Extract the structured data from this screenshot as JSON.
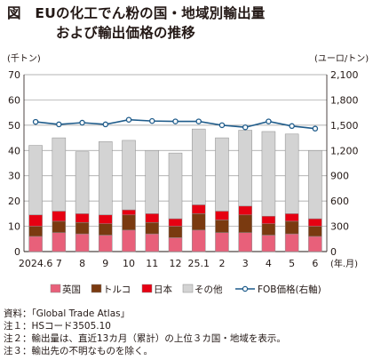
{
  "figure": {
    "title_line1": "図　EUの化工でん粉の国・地域別輸出量",
    "title_line2": "および輸出価格の推移"
  },
  "chart_data": {
    "type": "bar",
    "stacked": true,
    "categories": [
      "2024.6",
      "7",
      "8",
      "9",
      "10",
      "11",
      "12",
      "25.1",
      "2",
      "3",
      "4",
      "5",
      "6"
    ],
    "x_unit": "(年.月)",
    "y_left": {
      "unit": "(千トン)",
      "range": [
        0,
        70
      ],
      "ticks": [
        0,
        10,
        20,
        30,
        40,
        50,
        60,
        70
      ]
    },
    "y_right": {
      "unit": "(ユーロ/トン)",
      "range": [
        0,
        2100
      ],
      "ticks": [
        0,
        300,
        600,
        900,
        1200,
        1500,
        1800,
        2100
      ]
    },
    "grid": true,
    "series": [
      {
        "name": "英国",
        "color": "#e8607a",
        "values": [
          6,
          7.5,
          7,
          6.5,
          8.5,
          7,
          5.5,
          8.5,
          7.5,
          7.5,
          6.5,
          7,
          6
        ]
      },
      {
        "name": "トルコ",
        "color": "#7a3a10",
        "values": [
          4,
          4.5,
          4.5,
          4.5,
          6,
          4.5,
          4.5,
          6.5,
          5,
          7,
          4.5,
          5,
          4
        ]
      },
      {
        "name": "日本",
        "color": "#e60012",
        "values": [
          4.5,
          4,
          3.5,
          3.5,
          2,
          3.5,
          3,
          3.5,
          3.5,
          3.5,
          3,
          3,
          3
        ]
      },
      {
        "name": "その他",
        "color": "#d3d3d3",
        "values": [
          27.5,
          29,
          24.5,
          29,
          27.5,
          25,
          26,
          30,
          29,
          30,
          33.5,
          31.5,
          27
        ]
      }
    ],
    "line_series": {
      "name": "FOB価格(右軸)",
      "axis": "right",
      "color": "#1f5c8b",
      "values": [
        1540,
        1510,
        1530,
        1510,
        1565,
        1550,
        1545,
        1545,
        1500,
        1475,
        1545,
        1490,
        1460
      ]
    },
    "legend": {
      "position": "bottom"
    }
  },
  "notes": [
    "資料：「Global Trade Atlas」",
    "注１：HSコード3505.10",
    "注２：輸出量は、直近13カ月（累計）の上位３カ国・地域を表示。",
    "注３：輸出先の不明なものを除く。"
  ]
}
